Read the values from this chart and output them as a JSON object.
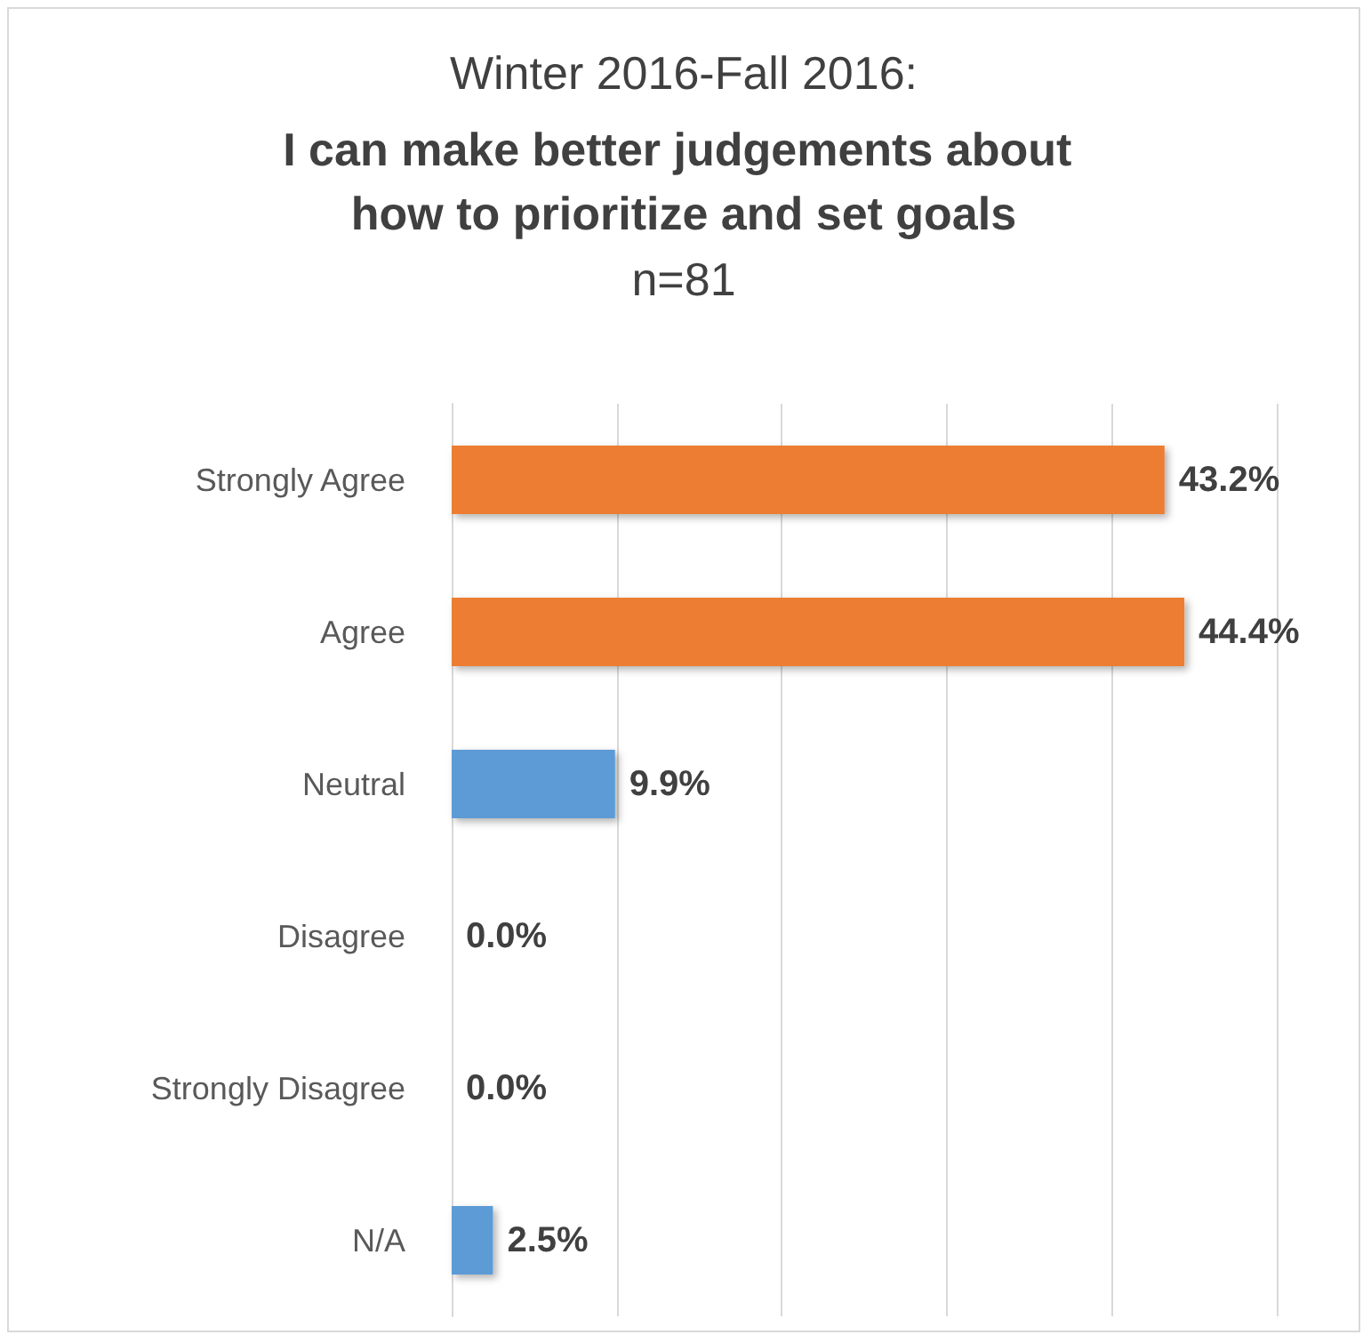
{
  "chart_data": {
    "type": "bar",
    "orientation": "horizontal",
    "subtitle": "Winter 2016-Fall 2016:",
    "title": "I can make better judgements about how to prioritize and set goals",
    "annotations": [
      "n=81"
    ],
    "categories": [
      "Strongly Agree",
      "Agree",
      "Neutral",
      "Disagree",
      "Strongly Disagree",
      "N/A"
    ],
    "values": [
      43.2,
      44.4,
      9.9,
      0.0,
      0.0,
      2.5
    ],
    "colors": [
      "#ed7d31",
      "#ed7d31",
      "#5b9bd5",
      "#5b9bd5",
      "#5b9bd5",
      "#5b9bd5"
    ],
    "value_labels": [
      "43.2%",
      "44.4%",
      "9.9%",
      "0.0%",
      "0.0%",
      "2.5%"
    ],
    "xlim": [
      0,
      50
    ],
    "xticks": [
      {
        "value": 0,
        "label": null
      },
      {
        "value": 10,
        "label": null
      },
      {
        "value": 20,
        "label": null
      },
      {
        "value": 30,
        "label": null
      },
      {
        "value": 40,
        "label": null
      },
      {
        "value": 50,
        "label": null
      }
    ],
    "grid": "x",
    "tick_labels": "y"
  }
}
